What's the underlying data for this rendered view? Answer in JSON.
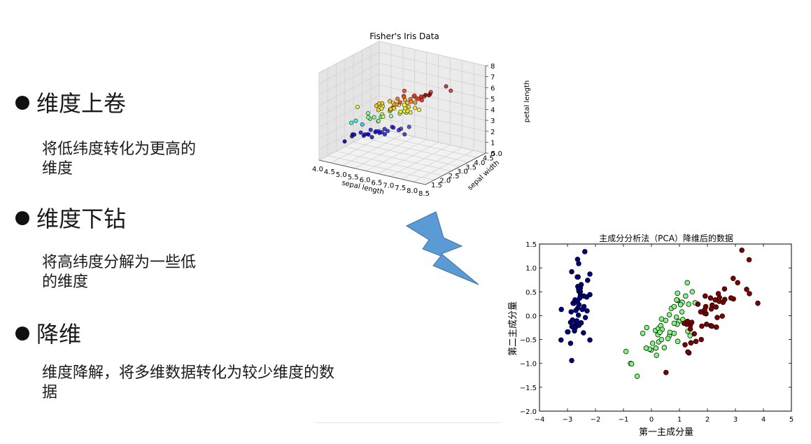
{
  "bullets": [
    {
      "title": "维度上卷",
      "desc": "将低纬度转化为更高的维度"
    },
    {
      "title": "维度下钻",
      "desc": "将高纬度分解为一些低的维度"
    },
    {
      "title": "降维",
      "desc": "维度降解，将多维数据转化为较少维度的数据"
    }
  ],
  "colors": {
    "arrow": "#5b9bd5",
    "arrow_stroke": "#41719c",
    "setosa": "#00007f",
    "versicolor": "#7ff77f",
    "virginica": "#7f0000"
  },
  "chart_data": [
    {
      "type": "scatter",
      "title": "Fisher's Iris Data",
      "xlabel": "sepal length",
      "ylabel": "sepal width",
      "zlabel": "petal length",
      "x_ticks": [
        "4.0",
        "4.5",
        "5.0",
        "5.5",
        "6.0",
        "6.5",
        "7.0",
        "7.5",
        "8.0",
        "8.5"
      ],
      "y_ticks": [
        "1.5",
        "2.0",
        "2.5",
        "3.0",
        "3.5",
        "4.0",
        "4.5",
        "5.0"
      ],
      "z_ticks": [
        "0",
        "1",
        "2",
        "3",
        "4",
        "5",
        "6",
        "7",
        "8"
      ],
      "xlim": [
        4.0,
        8.5
      ],
      "ylim": [
        1.5,
        5.0
      ],
      "zlim": [
        0,
        8
      ],
      "grid": true,
      "colormap": "jet by petal length",
      "points": [
        [
          4.3,
          3.0,
          1.1
        ],
        [
          4.4,
          3.0,
          1.3
        ],
        [
          4.6,
          3.1,
          1.5
        ],
        [
          4.7,
          3.2,
          1.3
        ],
        [
          4.8,
          3.4,
          1.6
        ],
        [
          4.8,
          3.0,
          1.4
        ],
        [
          4.9,
          3.1,
          1.5
        ],
        [
          5.0,
          3.6,
          1.4
        ],
        [
          5.0,
          3.4,
          1.5
        ],
        [
          5.0,
          3.0,
          1.6
        ],
        [
          5.1,
          3.5,
          1.4
        ],
        [
          5.1,
          3.8,
          1.5
        ],
        [
          5.1,
          3.3,
          1.7
        ],
        [
          5.2,
          3.5,
          1.5
        ],
        [
          5.2,
          4.1,
          1.5
        ],
        [
          5.4,
          3.9,
          1.7
        ],
        [
          5.4,
          3.4,
          1.5
        ],
        [
          5.5,
          4.2,
          1.4
        ],
        [
          5.7,
          4.4,
          1.5
        ],
        [
          5.8,
          4.0,
          1.2
        ],
        [
          5.0,
          3.2,
          1.2
        ],
        [
          5.3,
          3.7,
          1.5
        ],
        [
          5.7,
          3.8,
          1.7
        ],
        [
          4.5,
          2.3,
          1.3
        ],
        [
          4.4,
          2.9,
          1.4
        ],
        [
          7.0,
          3.2,
          4.7
        ],
        [
          6.4,
          3.2,
          4.5
        ],
        [
          6.9,
          3.1,
          4.9
        ],
        [
          5.5,
          2.3,
          4.0
        ],
        [
          6.5,
          2.8,
          4.6
        ],
        [
          5.7,
          2.8,
          4.5
        ],
        [
          6.3,
          3.3,
          4.7
        ],
        [
          4.9,
          2.4,
          3.3
        ],
        [
          6.6,
          2.9,
          4.6
        ],
        [
          5.2,
          2.7,
          3.9
        ],
        [
          5.0,
          2.0,
          3.5
        ],
        [
          5.9,
          3.0,
          4.2
        ],
        [
          6.0,
          2.2,
          4.0
        ],
        [
          6.1,
          2.9,
          4.7
        ],
        [
          5.6,
          2.9,
          3.6
        ],
        [
          6.7,
          3.1,
          4.4
        ],
        [
          5.6,
          3.0,
          4.5
        ],
        [
          5.8,
          2.7,
          4.1
        ],
        [
          6.2,
          2.2,
          4.5
        ],
        [
          5.6,
          2.5,
          3.9
        ],
        [
          5.9,
          3.2,
          4.8
        ],
        [
          6.1,
          2.8,
          4.0
        ],
        [
          6.3,
          2.5,
          4.9
        ],
        [
          6.4,
          2.9,
          4.3
        ],
        [
          6.6,
          3.0,
          4.4
        ],
        [
          6.8,
          2.8,
          4.8
        ],
        [
          6.7,
          3.0,
          5.0
        ],
        [
          6.0,
          2.9,
          4.5
        ],
        [
          5.7,
          2.6,
          3.5
        ],
        [
          5.5,
          2.4,
          3.8
        ],
        [
          6.0,
          3.4,
          4.5
        ],
        [
          5.4,
          3.0,
          4.5
        ],
        [
          5.1,
          2.5,
          3.0
        ],
        [
          6.3,
          3.3,
          6.0
        ],
        [
          5.8,
          2.7,
          5.1
        ],
        [
          7.1,
          3.0,
          5.9
        ],
        [
          6.3,
          2.9,
          5.6
        ],
        [
          6.5,
          3.0,
          5.8
        ],
        [
          7.6,
          3.0,
          6.6
        ],
        [
          4.9,
          2.5,
          4.5
        ],
        [
          7.3,
          2.9,
          6.3
        ],
        [
          6.7,
          2.5,
          5.8
        ],
        [
          7.2,
          3.6,
          6.1
        ],
        [
          6.5,
          3.2,
          5.1
        ],
        [
          6.4,
          2.7,
          5.3
        ],
        [
          6.8,
          3.0,
          5.5
        ],
        [
          5.7,
          2.5,
          5.0
        ],
        [
          6.4,
          3.2,
          5.3
        ],
        [
          7.7,
          3.8,
          6.7
        ],
        [
          7.7,
          2.6,
          6.9
        ],
        [
          6.0,
          2.2,
          5.0
        ],
        [
          6.9,
          3.2,
          5.7
        ],
        [
          5.6,
          2.8,
          4.9
        ],
        [
          7.7,
          2.8,
          6.7
        ],
        [
          6.3,
          2.7,
          4.9
        ],
        [
          6.7,
          3.3,
          5.7
        ],
        [
          7.2,
          3.2,
          6.0
        ],
        [
          6.2,
          2.8,
          4.8
        ],
        [
          6.1,
          3.0,
          4.9
        ],
        [
          7.9,
          3.8,
          6.4
        ],
        [
          7.4,
          2.8,
          6.1
        ],
        [
          6.9,
          3.1,
          5.4
        ],
        [
          6.7,
          3.1,
          5.6
        ],
        [
          6.8,
          3.2,
          5.9
        ],
        [
          6.3,
          2.5,
          5.0
        ],
        [
          6.2,
          3.4,
          5.4
        ],
        [
          5.9,
          3.0,
          5.1
        ]
      ]
    },
    {
      "type": "scatter",
      "title": "主成分分析法（PCA）降维后的数据",
      "xlabel": "第一主成分量",
      "ylabel": "第二主成分量",
      "xlim": [
        -4,
        5
      ],
      "ylim": [
        -2.0,
        1.5
      ],
      "x_ticks": [
        "−4",
        "−3",
        "−2",
        "−1",
        "0",
        "1",
        "2",
        "3",
        "4",
        "5"
      ],
      "y_ticks": [
        "−2.0",
        "−1.5",
        "−1.0",
        "−0.5",
        "0.0",
        "0.5",
        "1.0",
        "1.5"
      ],
      "grid": false,
      "series": [
        {
          "color": "#00007f",
          "points": [
            [
              -2.68,
              0.32
            ],
            [
              -2.71,
              -0.18
            ],
            [
              -2.89,
              -0.14
            ],
            [
              -2.75,
              -0.32
            ],
            [
              -2.73,
              0.33
            ],
            [
              -2.28,
              0.74
            ],
            [
              -2.82,
              -0.09
            ],
            [
              -2.63,
              0.16
            ],
            [
              -2.89,
              -0.58
            ],
            [
              -2.67,
              -0.11
            ],
            [
              -2.51,
              0.65
            ],
            [
              -2.61,
              0.01
            ],
            [
              -2.79,
              -0.24
            ],
            [
              -3.23,
              -0.51
            ],
            [
              -2.64,
              1.18
            ],
            [
              -2.38,
              1.34
            ],
            [
              -2.62,
              0.81
            ],
            [
              -2.65,
              0.31
            ],
            [
              -2.2,
              0.87
            ],
            [
              -2.59,
              0.51
            ],
            [
              -2.31,
              0.39
            ],
            [
              -2.54,
              0.43
            ],
            [
              -3.22,
              0.13
            ],
            [
              -2.3,
              0.1
            ],
            [
              -2.36,
              -0.04
            ],
            [
              -2.51,
              -0.15
            ],
            [
              -2.47,
              0.13
            ],
            [
              -2.56,
              0.37
            ],
            [
              -2.64,
              0.31
            ],
            [
              -2.63,
              -0.2
            ],
            [
              -2.59,
              -0.2
            ],
            [
              -2.41,
              0.41
            ],
            [
              -2.65,
              0.81
            ],
            [
              -2.6,
              1.09
            ],
            [
              -2.67,
              -0.11
            ],
            [
              -2.87,
              0.08
            ],
            [
              -2.63,
              0.61
            ],
            [
              -2.8,
              0.26
            ],
            [
              -2.98,
              -0.34
            ],
            [
              -2.59,
              0.23
            ],
            [
              -2.77,
              0.26
            ],
            [
              -2.85,
              -0.94
            ],
            [
              -3.0,
              -0.34
            ],
            [
              -2.41,
              0.19
            ],
            [
              -2.2,
              0.44
            ],
            [
              -2.72,
              -0.25
            ],
            [
              -2.54,
              0.5
            ],
            [
              -2.84,
              -0.23
            ],
            [
              -2.54,
              0.58
            ],
            [
              -2.7,
              0.11
            ],
            [
              -2.85,
              0.92
            ],
            [
              -2.6,
              0.55
            ],
            [
              -2.43,
              -0.36
            ],
            [
              -2.2,
              -0.51
            ]
          ]
        },
        {
          "color": "#7ff77f",
          "points": [
            [
              1.28,
              0.69
            ],
            [
              0.93,
              0.32
            ],
            [
              1.46,
              0.5
            ],
            [
              0.18,
              -0.83
            ],
            [
              1.09,
              0.08
            ],
            [
              0.64,
              -0.42
            ],
            [
              1.1,
              0.28
            ],
            [
              -0.75,
              -1.0
            ],
            [
              1.04,
              0.23
            ],
            [
              -0.01,
              -0.72
            ],
            [
              -0.51,
              -1.27
            ],
            [
              0.51,
              -0.1
            ],
            [
              0.26,
              -0.55
            ],
            [
              0.98,
              -0.12
            ],
            [
              -0.17,
              -0.25
            ],
            [
              0.93,
              0.47
            ],
            [
              0.66,
              -0.35
            ],
            [
              0.23,
              -0.33
            ],
            [
              0.94,
              -0.54
            ],
            [
              0.04,
              -0.58
            ],
            [
              1.12,
              -0.08
            ],
            [
              0.36,
              -0.07
            ],
            [
              1.3,
              -0.33
            ],
            [
              0.92,
              -0.18
            ],
            [
              0.71,
              0.15
            ],
            [
              0.9,
              0.33
            ],
            [
              1.33,
              0.24
            ],
            [
              1.56,
              0.27
            ],
            [
              0.81,
              -0.16
            ],
            [
              -0.31,
              -0.37
            ],
            [
              -0.07,
              -0.7
            ],
            [
              -0.19,
              -0.68
            ],
            [
              0.14,
              -0.31
            ],
            [
              1.38,
              -0.42
            ],
            [
              0.59,
              -0.48
            ],
            [
              0.81,
              0.19
            ],
            [
              1.22,
              0.41
            ],
            [
              0.81,
              -0.37
            ],
            [
              0.25,
              -0.27
            ],
            [
              0.16,
              -0.68
            ],
            [
              0.46,
              -0.67
            ],
            [
              0.89,
              -0.03
            ],
            [
              0.23,
              -0.4
            ],
            [
              -0.71,
              -1.01
            ],
            [
              0.36,
              -0.5
            ],
            [
              0.33,
              -0.21
            ],
            [
              0.38,
              -0.29
            ],
            [
              0.64,
              0.02
            ],
            [
              -0.91,
              -0.75
            ],
            [
              0.3,
              -0.35
            ]
          ]
        },
        {
          "color": "#7f0000",
          "points": [
            [
              2.53,
              -0.01
            ],
            [
              1.41,
              -0.57
            ],
            [
              2.62,
              0.34
            ],
            [
              1.97,
              -0.18
            ],
            [
              2.35,
              -0.04
            ],
            [
              3.4,
              0.55
            ],
            [
              0.52,
              -1.19
            ],
            [
              2.93,
              0.35
            ],
            [
              2.32,
              -0.24
            ],
            [
              2.92,
              0.78
            ],
            [
              1.66,
              0.24
            ],
            [
              1.8,
              -0.22
            ],
            [
              2.17,
              0.22
            ],
            [
              1.34,
              -0.78
            ],
            [
              1.59,
              -0.54
            ],
            [
              1.9,
              0.12
            ],
            [
              1.95,
              0.04
            ],
            [
              3.49,
              1.17
            ],
            [
              3.8,
              0.26
            ],
            [
              1.3,
              -0.76
            ],
            [
              2.43,
              0.38
            ],
            [
              1.2,
              -0.61
            ],
            [
              3.5,
              0.46
            ],
            [
              1.39,
              -0.2
            ],
            [
              2.28,
              0.33
            ],
            [
              2.61,
              0.56
            ],
            [
              1.26,
              -0.18
            ],
            [
              1.29,
              -0.12
            ],
            [
              2.12,
              -0.21
            ],
            [
              2.39,
              0.46
            ],
            [
              2.84,
              0.37
            ],
            [
              3.23,
              1.37
            ],
            [
              2.16,
              -0.22
            ],
            [
              1.44,
              -0.14
            ],
            [
              1.78,
              -0.5
            ],
            [
              3.08,
              0.69
            ],
            [
              2.14,
              0.14
            ],
            [
              1.9,
              0.05
            ],
            [
              1.17,
              -0.16
            ],
            [
              2.11,
              0.37
            ],
            [
              2.31,
              0.18
            ],
            [
              1.92,
              0.41
            ],
            [
              1.41,
              -0.57
            ],
            [
              2.56,
              0.28
            ],
            [
              2.42,
              0.3
            ],
            [
              1.94,
              0.19
            ],
            [
              1.53,
              -0.38
            ],
            [
              1.76,
              0.08
            ],
            [
              1.9,
              0.12
            ],
            [
              1.39,
              -0.28
            ]
          ]
        }
      ]
    }
  ]
}
